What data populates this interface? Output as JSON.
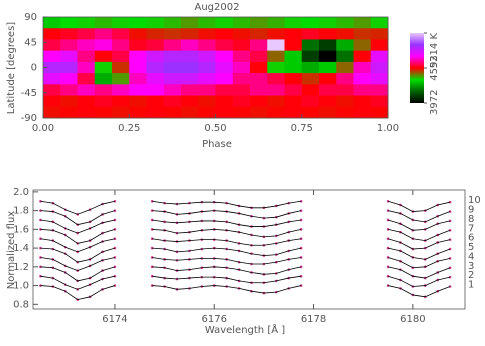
{
  "chart_data": [
    {
      "type": "heatmap",
      "title": "Aug2002",
      "xlabel": "Phase",
      "ylabel": "Latitude [degrees]",
      "xlim": [
        0,
        1
      ],
      "ylim": [
        -90,
        90
      ],
      "xticks": [
        {
          "value": 0,
          "label": "0.00"
        },
        {
          "value": 0.25,
          "label": "0.25"
        },
        {
          "value": 0.5,
          "label": "0.50"
        },
        {
          "value": 0.75,
          "label": "0.75"
        },
        {
          "value": 1,
          "label": "1.00"
        }
      ],
      "yticks": [
        -90,
        -45,
        0,
        45,
        90
      ],
      "x": [
        0.025,
        0.075,
        0.125,
        0.175,
        0.225,
        0.275,
        0.325,
        0.375,
        0.425,
        0.475,
        0.525,
        0.575,
        0.625,
        0.675,
        0.725,
        0.775,
        0.825,
        0.875,
        0.925,
        0.975
      ],
      "y": [
        80,
        60,
        40,
        20,
        0,
        -20,
        -40,
        -60,
        -80
      ],
      "values": [
        [
          4350,
          4380,
          4400,
          4420,
          4400,
          4380,
          4400,
          4420,
          4450,
          4420,
          4400,
          4420,
          4450,
          4430,
          4400,
          4380,
          4400,
          4420,
          4450,
          4400
        ],
        [
          4600,
          4620,
          4650,
          4700,
          4650,
          4580,
          4560,
          4550,
          4560,
          4580,
          4600,
          4580,
          4560,
          4580,
          4600,
          4620,
          4600,
          4580,
          4550,
          4560
        ],
        [
          4650,
          4700,
          4750,
          4780,
          4700,
          4620,
          4640,
          4700,
          4750,
          4700,
          4650,
          4620,
          4700,
          5214,
          4600,
          4200,
          4100,
          4300,
          4500,
          4600
        ],
        [
          4800,
          4850,
          4700,
          4600,
          4650,
          4800,
          4900,
          4950,
          4950,
          4900,
          4800,
          4700,
          4650,
          4500,
          4350,
          4100,
          3972,
          4200,
          4600,
          4850
        ],
        [
          4950,
          4950,
          4750,
          4400,
          4550,
          4800,
          4950,
          5000,
          5000,
          4950,
          4850,
          4750,
          4600,
          4400,
          4350,
          4300,
          4350,
          4500,
          4750,
          4900
        ],
        [
          4850,
          4800,
          4650,
          4300,
          4450,
          4750,
          4850,
          4900,
          4900,
          4850,
          4800,
          4700,
          4700,
          4650,
          4600,
          4550,
          4600,
          4700,
          4800,
          4850
        ],
        [
          4650,
          4700,
          4750,
          4700,
          4750,
          4800,
          4800,
          4750,
          4700,
          4700,
          4650,
          4650,
          4700,
          4700,
          4650,
          4600,
          4650,
          4650,
          4700,
          4700
        ],
        [
          4600,
          4580,
          4600,
          4620,
          4600,
          4580,
          4600,
          4620,
          4600,
          4580,
          4600,
          4620,
          4600,
          4580,
          4600,
          4620,
          4600,
          4580,
          4600,
          4620
        ],
        [
          4580,
          4590,
          4600,
          4590,
          4580,
          4590,
          4600,
          4590,
          4580,
          4590,
          4600,
          4590,
          4580,
          4590,
          4600,
          4590,
          4580,
          4590,
          4600,
          4590
        ]
      ],
      "clim": [
        3972,
        5214
      ],
      "cticks": [
        3972,
        4593,
        {
          "value": 5214,
          "label": "5214 K"
        }
      ],
      "colorscale": [
        "#000000",
        "#006400",
        "#00e000",
        "#ff0000",
        "#ff00ff",
        "#9933ff",
        "#e8c8ff"
      ]
    },
    {
      "type": "line",
      "xlabel": "Wavelength [Å ]",
      "ylabel": "Normalized flux",
      "xlim": [
        6172.35,
        6181.05
      ],
      "ylim": [
        0.75,
        2.02
      ],
      "xticks": [
        6174,
        6176,
        6178,
        6180
      ],
      "yticks": [
        0.8,
        {
          "value": 1,
          "label": "1.0"
        },
        1.2,
        1.4,
        1.6,
        1.8,
        {
          "value": 2,
          "label": "2.0"
        }
      ],
      "marker_color": "#d04090",
      "x": [
        6172.5,
        6172.75,
        6173.0,
        6173.25,
        6173.5,
        6173.75,
        6174.0,
        6174.4,
        6174.75,
        6175.0,
        6175.25,
        6175.5,
        6175.75,
        6176.0,
        6176.25,
        6176.5,
        6176.75,
        6177.0,
        6177.25,
        6177.5,
        6177.75,
        6178.6,
        6179.5,
        6179.75,
        6180.0,
        6180.25,
        6180.5,
        6180.75
      ],
      "series": [
        {
          "name": "1",
          "color": "#000000",
          "values": [
            1.0,
            0.99,
            0.94,
            0.85,
            0.88,
            0.96,
            1.0,
            null,
            1.0,
            0.99,
            0.96,
            0.97,
            0.99,
            1.0,
            0.99,
            0.97,
            0.94,
            0.92,
            0.93,
            0.97,
            1.0,
            null,
            1.0,
            0.97,
            0.9,
            0.88,
            0.94,
            0.99
          ]
        },
        {
          "name": "2",
          "color": "#000000",
          "values": [
            1.1,
            1.08,
            1.01,
            0.96,
            1.01,
            1.07,
            1.1,
            null,
            1.1,
            1.08,
            1.07,
            1.08,
            1.09,
            1.09,
            1.08,
            1.05,
            1.03,
            1.03,
            1.05,
            1.08,
            1.1,
            null,
            1.1,
            1.06,
            0.99,
            1.0,
            1.06,
            1.09
          ]
        },
        {
          "name": "3",
          "color": "#000000",
          "values": [
            1.2,
            1.19,
            1.14,
            1.05,
            1.08,
            1.16,
            1.2,
            null,
            1.2,
            1.19,
            1.16,
            1.17,
            1.19,
            1.2,
            1.19,
            1.17,
            1.14,
            1.12,
            1.13,
            1.17,
            1.2,
            null,
            1.2,
            1.17,
            1.1,
            1.08,
            1.14,
            1.19
          ]
        },
        {
          "name": "4",
          "color": "#000000",
          "values": [
            1.3,
            1.28,
            1.21,
            1.16,
            1.21,
            1.27,
            1.3,
            null,
            1.3,
            1.28,
            1.27,
            1.28,
            1.29,
            1.29,
            1.28,
            1.25,
            1.23,
            1.23,
            1.25,
            1.28,
            1.3,
            null,
            1.3,
            1.26,
            1.19,
            1.2,
            1.26,
            1.29
          ]
        },
        {
          "name": "5",
          "color": "#000000",
          "values": [
            1.4,
            1.39,
            1.34,
            1.25,
            1.28,
            1.36,
            1.4,
            null,
            1.4,
            1.39,
            1.36,
            1.37,
            1.39,
            1.4,
            1.39,
            1.37,
            1.34,
            1.32,
            1.33,
            1.37,
            1.4,
            null,
            1.4,
            1.37,
            1.3,
            1.28,
            1.34,
            1.39
          ]
        },
        {
          "name": "6",
          "color": "#000000",
          "values": [
            1.5,
            1.48,
            1.41,
            1.36,
            1.41,
            1.47,
            1.5,
            null,
            1.5,
            1.48,
            1.47,
            1.48,
            1.49,
            1.49,
            1.48,
            1.45,
            1.43,
            1.43,
            1.45,
            1.48,
            1.5,
            null,
            1.5,
            1.46,
            1.39,
            1.4,
            1.46,
            1.49
          ]
        },
        {
          "name": "7",
          "color": "#000000",
          "values": [
            1.6,
            1.59,
            1.54,
            1.45,
            1.48,
            1.56,
            1.6,
            null,
            1.6,
            1.59,
            1.56,
            1.57,
            1.59,
            1.6,
            1.59,
            1.57,
            1.54,
            1.52,
            1.53,
            1.57,
            1.6,
            null,
            1.6,
            1.57,
            1.5,
            1.48,
            1.54,
            1.59
          ]
        },
        {
          "name": "8",
          "color": "#000000",
          "values": [
            1.7,
            1.68,
            1.61,
            1.56,
            1.61,
            1.67,
            1.7,
            null,
            1.7,
            1.68,
            1.67,
            1.68,
            1.69,
            1.69,
            1.68,
            1.65,
            1.63,
            1.63,
            1.65,
            1.68,
            1.7,
            null,
            1.7,
            1.66,
            1.59,
            1.6,
            1.66,
            1.69
          ]
        },
        {
          "name": "9",
          "color": "#000000",
          "values": [
            1.8,
            1.79,
            1.74,
            1.65,
            1.68,
            1.76,
            1.8,
            null,
            1.8,
            1.79,
            1.76,
            1.77,
            1.79,
            1.8,
            1.79,
            1.77,
            1.74,
            1.72,
            1.73,
            1.77,
            1.8,
            null,
            1.8,
            1.77,
            1.7,
            1.68,
            1.74,
            1.79
          ]
        },
        {
          "name": "10",
          "color": "#000000",
          "values": [
            1.9,
            1.88,
            1.81,
            1.76,
            1.81,
            1.87,
            1.9,
            null,
            1.9,
            1.88,
            1.87,
            1.88,
            1.89,
            1.89,
            1.88,
            1.85,
            1.83,
            1.83,
            1.85,
            1.88,
            1.9,
            null,
            1.9,
            1.86,
            1.79,
            1.8,
            1.86,
            1.89
          ]
        }
      ]
    }
  ]
}
